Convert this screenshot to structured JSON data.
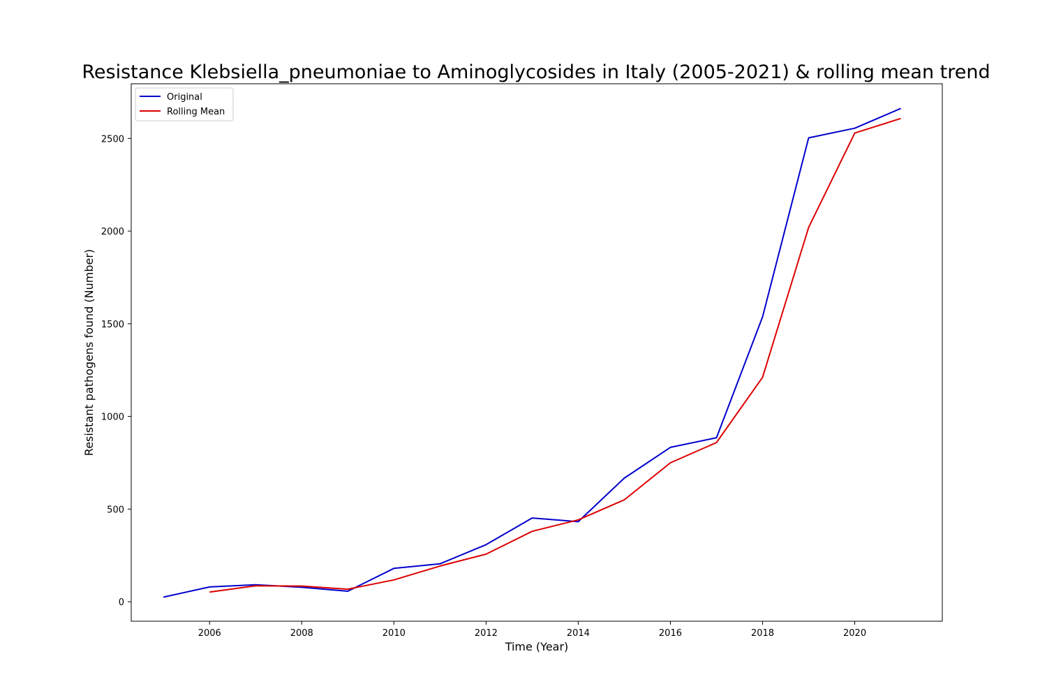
{
  "chart_data": {
    "type": "line",
    "title": "Resistance Klebsiella_pneumoniae to Aminoglycosides in Italy (2005-2021) & rolling mean trend",
    "xlabel": "Time (Year)",
    "ylabel": "Resistant pathogens found (Number)",
    "xlim": [
      2004.3,
      2021.9
    ],
    "ylim": [
      -105,
      2795
    ],
    "xticks": [
      2006,
      2008,
      2010,
      2012,
      2014,
      2016,
      2018,
      2020
    ],
    "yticks": [
      0,
      500,
      1000,
      1500,
      2000,
      2500
    ],
    "grid": false,
    "legend_position": "top-left",
    "series": [
      {
        "name": "Original",
        "color": "#0000cc",
        "x": [
          2005,
          2006,
          2007,
          2008,
          2009,
          2010,
          2011,
          2012,
          2013,
          2014,
          2015,
          2016,
          2017,
          2018,
          2019,
          2020,
          2021
        ],
        "values": [
          25,
          80,
          92,
          78,
          57,
          180,
          205,
          308,
          452,
          432,
          667,
          833,
          885,
          1537,
          2503,
          2555,
          2662
        ]
      },
      {
        "name": "Rolling Mean",
        "color": "#dd0000",
        "x": [
          2006,
          2007,
          2008,
          2009,
          2010,
          2011,
          2012,
          2013,
          2014,
          2015,
          2016,
          2017,
          2018,
          2019,
          2020,
          2021
        ],
        "values": [
          52,
          86,
          85,
          68,
          118,
          193,
          257,
          380,
          442,
          550,
          750,
          859,
          1211,
          2020,
          2529,
          2608
        ]
      }
    ]
  }
}
